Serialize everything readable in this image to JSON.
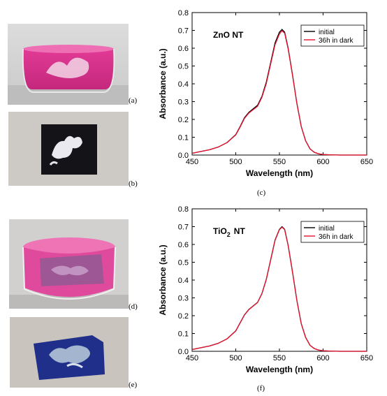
{
  "panels": {
    "a": "(a)",
    "b": "(b)",
    "c": "(c)",
    "d": "(d)",
    "e": "(e)",
    "f": "(f)"
  },
  "colors": {
    "initial": "#000000",
    "dark": "#e8112d",
    "dye": "#e0489a"
  },
  "chart_data": [
    {
      "type": "line",
      "panel": "(c)",
      "annotation": "ZnO  NT",
      "xlabel": "Wavelength (nm)",
      "ylabel": "Absorbance (a.u.)",
      "xlim": [
        450,
        650
      ],
      "ylim": [
        0,
        0.8
      ],
      "xticks": [
        "450",
        "500",
        "550",
        "600",
        "650"
      ],
      "yticks": [
        "0.0",
        "0.1",
        "0.2",
        "0.3",
        "0.4",
        "0.5",
        "0.6",
        "0.7",
        "0.8"
      ],
      "legend_position": "top-right",
      "x": [
        450,
        460,
        470,
        480,
        490,
        500,
        505,
        510,
        515,
        520,
        525,
        530,
        535,
        540,
        545,
        550,
        553,
        556,
        560,
        565,
        570,
        575,
        580,
        585,
        590,
        595,
        600,
        610,
        620,
        650
      ],
      "series": [
        {
          "name": "initial",
          "values": [
            0.01,
            0.02,
            0.03,
            0.045,
            0.07,
            0.115,
            0.16,
            0.21,
            0.24,
            0.26,
            0.28,
            0.33,
            0.41,
            0.52,
            0.63,
            0.69,
            0.705,
            0.69,
            0.6,
            0.45,
            0.29,
            0.16,
            0.08,
            0.035,
            0.015,
            0.007,
            0.003,
            0.001,
            0.0,
            0.0
          ]
        },
        {
          "name": "36h in dark",
          "values": [
            0.01,
            0.02,
            0.03,
            0.045,
            0.07,
            0.113,
            0.157,
            0.206,
            0.236,
            0.255,
            0.274,
            0.325,
            0.402,
            0.512,
            0.62,
            0.68,
            0.698,
            0.684,
            0.595,
            0.447,
            0.289,
            0.16,
            0.08,
            0.035,
            0.015,
            0.007,
            0.003,
            0.001,
            0.0,
            0.0
          ]
        }
      ]
    },
    {
      "type": "line",
      "panel": "(f)",
      "annotation_main": "TiO",
      "annotation_sub": "2",
      "annotation_tail": "NT",
      "xlabel": "Wavelength (nm)",
      "ylabel": "Absorbance (a.u.)",
      "xlim": [
        450,
        650
      ],
      "ylim": [
        0,
        0.8
      ],
      "xticks": [
        "450",
        "500",
        "550",
        "600",
        "650"
      ],
      "yticks": [
        "0.0",
        "0.1",
        "0.2",
        "0.3",
        "0.4",
        "0.5",
        "0.6",
        "0.7",
        "0.8"
      ],
      "legend_position": "top-right",
      "x": [
        450,
        460,
        470,
        480,
        490,
        500,
        505,
        510,
        515,
        520,
        525,
        530,
        535,
        540,
        545,
        550,
        553,
        556,
        560,
        565,
        570,
        575,
        580,
        585,
        590,
        595,
        600,
        610,
        620,
        650
      ],
      "series": [
        {
          "name": "initial",
          "values": [
            0.01,
            0.02,
            0.03,
            0.045,
            0.07,
            0.115,
            0.16,
            0.205,
            0.235,
            0.255,
            0.275,
            0.325,
            0.405,
            0.515,
            0.625,
            0.685,
            0.7,
            0.685,
            0.595,
            0.445,
            0.285,
            0.155,
            0.078,
            0.034,
            0.015,
            0.007,
            0.003,
            0.001,
            0.0,
            0.0
          ]
        },
        {
          "name": "36h in dark",
          "values": [
            0.01,
            0.02,
            0.03,
            0.045,
            0.07,
            0.114,
            0.159,
            0.204,
            0.234,
            0.254,
            0.274,
            0.324,
            0.404,
            0.513,
            0.623,
            0.683,
            0.697,
            0.683,
            0.593,
            0.444,
            0.285,
            0.155,
            0.078,
            0.034,
            0.015,
            0.007,
            0.003,
            0.001,
            0.0,
            0.0
          ]
        }
      ]
    }
  ]
}
